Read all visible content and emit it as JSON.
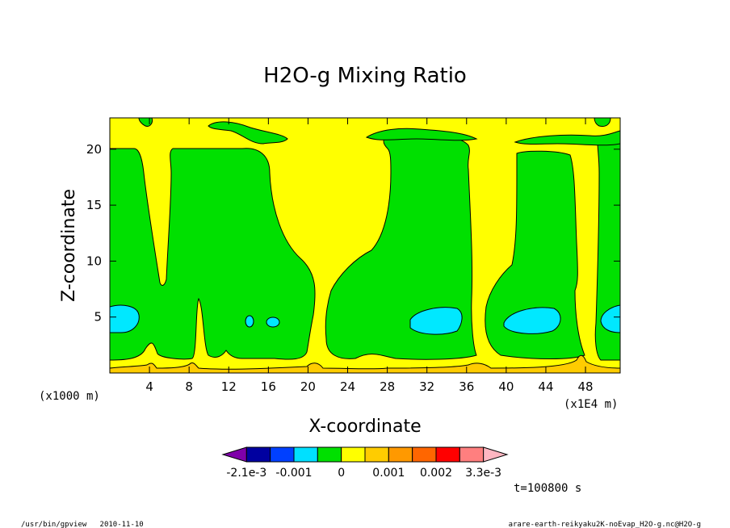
{
  "chart_data": {
    "type": "heatmap",
    "title": "H2O-g Mixing Ratio",
    "xlabel": "X-coordinate",
    "ylabel": "Z-coordinate",
    "x_unit_left": "(x1000 m)",
    "x_unit_right": "(x1E4 m)",
    "xlim": [
      0,
      51.5
    ],
    "ylim": [
      0,
      22.8
    ],
    "x_ticks": [
      4,
      8,
      12,
      16,
      20,
      24,
      28,
      32,
      36,
      40,
      44,
      48
    ],
    "y_ticks": [
      5,
      10,
      15,
      20
    ],
    "time_label": "t=100800 s",
    "colorbar": {
      "colors": [
        "#7f00aa",
        "#0000a0",
        "#0040ff",
        "#00e0ff",
        "#00e000",
        "#ffff00",
        "#ffcc00",
        "#ff9900",
        "#ff6600",
        "#ff0000",
        "#ff7f7f",
        "#ffb6c1"
      ],
      "labels": [
        "-2.1e-3",
        "-0.001",
        "0",
        "0.001",
        "0.002",
        "3.3e-3"
      ]
    },
    "regions": {
      "background": "#ffff00",
      "moist": "#00e000",
      "maximum": "#00e8ff",
      "surface": "#ffcc00"
    }
  },
  "footer": {
    "left": "/usr/bin/gpview   2010-11-10",
    "right": "arare-earth-reikyaku2K-noEvap_H2O-g.nc@H2O-g"
  }
}
